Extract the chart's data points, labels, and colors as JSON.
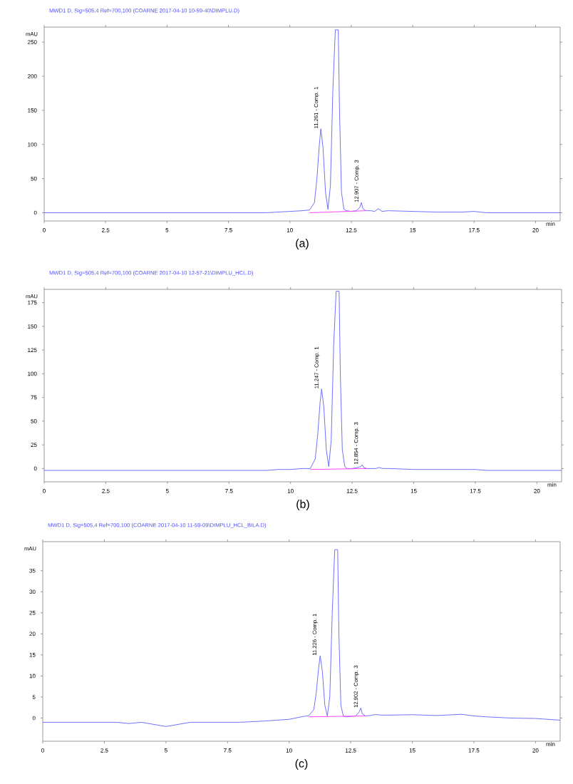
{
  "chart_data": [
    {
      "type": "line",
      "title": "MWD1 D, Sig=505,4 Ref=700,100 (COARNE 2017-04-10 10-59-40\\DIMPLU.D)",
      "xlabel": "min",
      "ylabel": "mAU",
      "xlim": [
        0,
        21
      ],
      "ylim": [
        -12,
        272
      ],
      "xticks": [
        0,
        2.5,
        5,
        7.5,
        10,
        12.5,
        15,
        17.5,
        20
      ],
      "yticks": [
        0,
        50,
        100,
        150,
        200,
        250
      ],
      "series": [
        {
          "color": "#6f6fff",
          "x": [
            0,
            1,
            2,
            3,
            3.5,
            4,
            5,
            6,
            7,
            8,
            9,
            9.5,
            10,
            10.5,
            10.8,
            11.0,
            11.1,
            11.2,
            11.26,
            11.35,
            11.45,
            11.55,
            11.65,
            11.75,
            11.85,
            11.92,
            11.97,
            12.02,
            12.1,
            12.2,
            12.3,
            12.5,
            12.7,
            12.85,
            12.91,
            12.97,
            13.1,
            13.3,
            13.45,
            13.6,
            13.75,
            14,
            15,
            16,
            17,
            17.5,
            18,
            19,
            20,
            21
          ],
          "values": [
            0,
            0,
            0,
            0,
            0,
            0,
            0,
            0,
            0,
            0,
            0,
            1,
            2,
            3,
            4,
            15,
            50,
            100,
            123,
            95,
            30,
            5,
            40,
            180,
            268,
            268,
            268,
            150,
            30,
            5,
            3,
            2,
            3,
            8,
            15,
            6,
            3,
            3,
            2,
            6,
            2,
            3,
            2,
            1,
            1,
            2,
            0,
            0,
            0,
            0
          ]
        },
        {
          "color": "#ff44ff",
          "x": [
            10.8,
            13.1
          ],
          "values": [
            0,
            3
          ]
        }
      ],
      "annotations": [
        {
          "text": "11.261 - Comp. 1",
          "x": 11.261,
          "y": 123
        },
        {
          "text": "12.907 - Comp. 3",
          "x": 12.907,
          "y": 15
        },
        "(a)"
      ]
    },
    {
      "type": "line",
      "title": "MWD1 D, Sig=505,4 Ref=700,100 (COARNE 2017-04-10 12-57-21\\DIMPLU_HCL.D)",
      "xlabel": "min",
      "ylabel": "mAU",
      "xlim": [
        0,
        21
      ],
      "ylim": [
        -14,
        189
      ],
      "xticks": [
        0,
        2.5,
        5,
        7.5,
        10,
        12.5,
        15,
        17.5,
        20
      ],
      "yticks": [
        0,
        25,
        50,
        75,
        100,
        125,
        150,
        175
      ],
      "series": [
        {
          "color": "#6f6fff",
          "x": [
            0,
            1,
            2,
            3,
            3.5,
            4,
            5,
            6,
            7,
            8,
            9,
            9.5,
            10,
            10.5,
            10.8,
            11.0,
            11.1,
            11.2,
            11.26,
            11.35,
            11.45,
            11.55,
            11.65,
            11.75,
            11.85,
            11.92,
            11.97,
            12.02,
            12.1,
            12.2,
            12.3,
            12.5,
            12.7,
            12.85,
            12.91,
            12.97,
            13.1,
            13.3,
            13.45,
            13.6,
            13.75,
            14,
            15,
            16,
            17,
            17.5,
            18,
            19,
            20,
            21
          ],
          "values": [
            -2,
            -2,
            -2,
            -2,
            -2,
            -2,
            -2,
            -2,
            -2,
            -2,
            -2,
            -1,
            -1,
            0,
            0,
            10,
            35,
            70,
            84,
            65,
            20,
            2,
            30,
            130,
            187,
            187,
            187,
            100,
            20,
            2,
            0,
            0,
            1,
            2,
            4,
            1,
            0,
            0,
            0,
            1,
            0,
            0,
            -1,
            -1,
            -1,
            -1,
            -2,
            -2,
            -2,
            -2
          ]
        },
        {
          "color": "#ff44ff",
          "x": [
            10.8,
            13.1
          ],
          "values": [
            -1,
            0
          ]
        }
      ],
      "annotations": [
        {
          "text": "11.247 - Comp. 1",
          "x": 11.247,
          "y": 84
        },
        {
          "text": "12.854 - Comp. 3",
          "x": 12.854,
          "y": 4
        },
        "(b)"
      ]
    },
    {
      "type": "line",
      "title": "MWD1 D, Sig=505,4 Ref=700,100 (COARNE 2017-04-10 11-59-09\\DIMPLU_HCL_BILA.D)",
      "xlabel": "min",
      "ylabel": "mAU",
      "xlim": [
        0,
        21
      ],
      "ylim": [
        -5.5,
        41.9
      ],
      "xticks": [
        0,
        2.5,
        5,
        7.5,
        10,
        12.5,
        15,
        17.5,
        20
      ],
      "yticks": [
        0,
        5,
        10,
        15,
        20,
        25,
        30,
        35
      ],
      "series": [
        {
          "color": "#6f6fff",
          "x": [
            0,
            1,
            2,
            3,
            3.5,
            4,
            5,
            6,
            7,
            8,
            9,
            9.5,
            10,
            10.5,
            10.8,
            11.0,
            11.1,
            11.2,
            11.26,
            11.35,
            11.45,
            11.55,
            11.65,
            11.75,
            11.85,
            11.92,
            11.97,
            12.02,
            12.1,
            12.2,
            12.3,
            12.5,
            12.7,
            12.85,
            12.91,
            12.97,
            13.1,
            13.3,
            13.45,
            13.6,
            13.75,
            14,
            15,
            16,
            17,
            17.5,
            18,
            19,
            20,
            21
          ],
          "values": [
            -1,
            -1,
            -1,
            -1,
            -1.3,
            -1,
            -2,
            -1,
            -1,
            -1,
            -0.7,
            -0.5,
            -0.3,
            0.3,
            0.6,
            2,
            6,
            12,
            14.8,
            11,
            3,
            0.5,
            5,
            25,
            40,
            40,
            40,
            20,
            3,
            0.5,
            0.3,
            0.4,
            0.5,
            1.5,
            2.4,
            1,
            0.5,
            0.6,
            0.8,
            0.8,
            0.7,
            0.7,
            0.8,
            0.6,
            0.9,
            0.5,
            0.3,
            0,
            -0.1,
            -0.5
          ]
        },
        {
          "color": "#ff44ff",
          "x": [
            10.8,
            13.1
          ],
          "values": [
            0.3,
            0.5
          ]
        }
      ],
      "annotations": [
        {
          "text": "11.226 - Comp. 1",
          "x": 11.226,
          "y": 14.8
        },
        {
          "text": "12.902 - Comp. 3",
          "x": 12.902,
          "y": 2.4
        },
        "(c)"
      ]
    }
  ]
}
